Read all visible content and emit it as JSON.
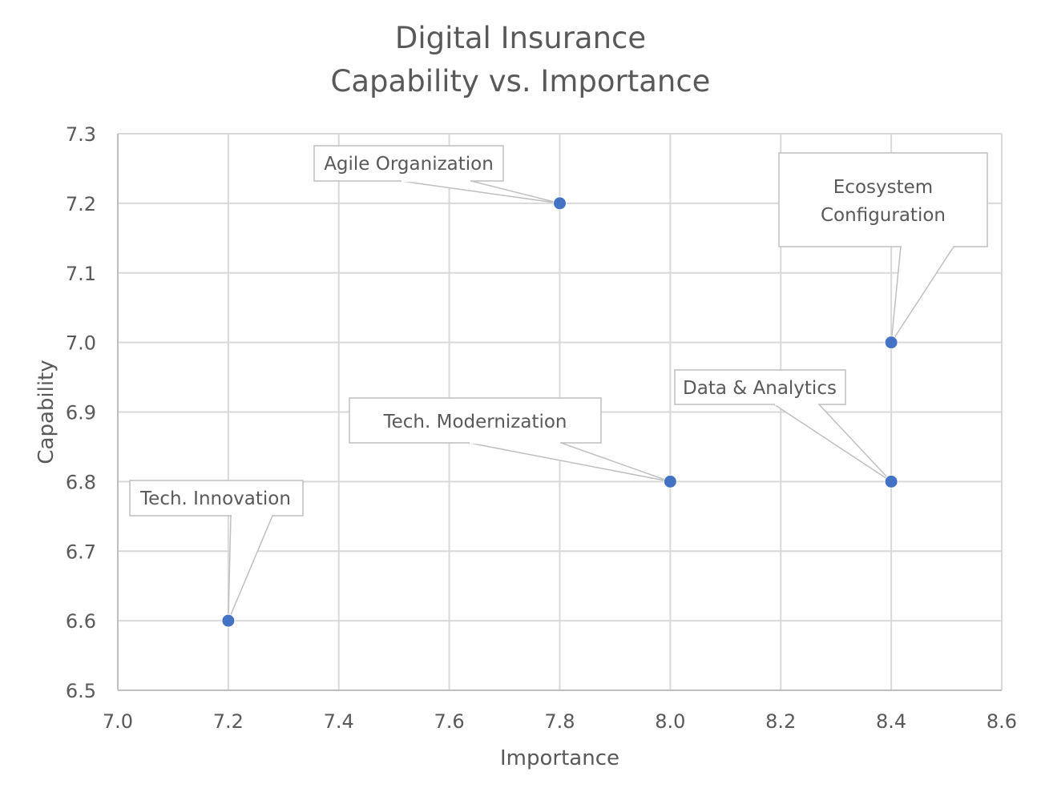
{
  "chart_data": {
    "type": "scatter",
    "title_lines": [
      "Digital Insurance",
      "Capability vs. Importance"
    ],
    "xlabel": "Importance",
    "ylabel": "Capability",
    "xlim": [
      7.0,
      8.6
    ],
    "ylim": [
      6.5,
      7.3
    ],
    "x_ticks": [
      "7.0",
      "7.2",
      "7.4",
      "7.6",
      "7.8",
      "8.0",
      "8.2",
      "8.4",
      "8.6"
    ],
    "y_ticks": [
      "6.5",
      "6.6",
      "6.7",
      "6.8",
      "6.9",
      "7.0",
      "7.1",
      "7.2",
      "7.3"
    ],
    "grid": true,
    "marker_color": "#4472C4",
    "points": [
      {
        "label": "Agile Organization",
        "x": 7.8,
        "y": 7.2
      },
      {
        "label": "Ecosystem Configuration",
        "x": 8.4,
        "y": 7.0
      },
      {
        "label": "Data & Analytics",
        "x": 8.4,
        "y": 6.8
      },
      {
        "label": "Tech. Modernization",
        "x": 8.0,
        "y": 6.8
      },
      {
        "label": "Tech. Innovation",
        "x": 7.2,
        "y": 6.6
      }
    ]
  }
}
